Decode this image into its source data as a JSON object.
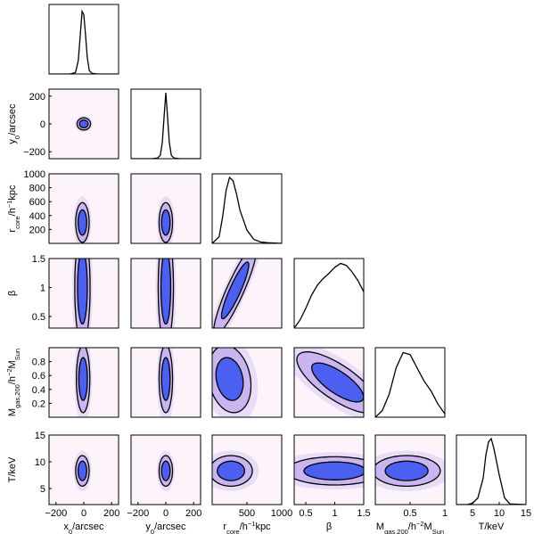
{
  "chart_data": {
    "type": "corner",
    "parameters": [
      {
        "id": "x0",
        "label": "x0/arcsec",
        "range": [
          -250,
          250
        ],
        "ticks": [
          -200,
          0,
          200
        ],
        "peak": -10,
        "sigma": 25
      },
      {
        "id": "y0",
        "label": "y0/arcsec",
        "range": [
          -250,
          250
        ],
        "ticks": [
          -200,
          0,
          200
        ],
        "peak": 0,
        "sigma": 25
      },
      {
        "id": "rcore",
        "label": "rcore/h^-1kpc",
        "range": [
          0,
          1000
        ],
        "ticks": [
          200,
          400,
          600,
          800,
          1000
        ],
        "xticks": [
          500,
          1000
        ],
        "peak": 300,
        "sigma": 130
      },
      {
        "id": "beta",
        "label": "β",
        "range": [
          0.3,
          1.5
        ],
        "ticks": [
          0.5,
          1,
          1.5
        ],
        "peak": 1.05,
        "sigma": 0.35
      },
      {
        "id": "mgas",
        "label": "Mgas,200/h^-2MSun",
        "range": [
          0,
          1
        ],
        "ticks": [
          0.2,
          0.4,
          0.6,
          0.8
        ],
        "xticks": [
          0.5,
          1
        ],
        "peak": 0.45,
        "sigma": 0.22
      },
      {
        "id": "T",
        "label": "T/keV",
        "range": [
          2,
          15
        ],
        "ticks": [
          5,
          10,
          15
        ],
        "peak": 8.3,
        "sigma": 1.3
      }
    ],
    "diagonal": {
      "x0": {
        "x": [
          -250,
          -100,
          -60,
          -40,
          -25,
          -12,
          0,
          12,
          25,
          40,
          60,
          100,
          250
        ],
        "y": [
          0,
          0,
          0.02,
          0.2,
          0.6,
          0.95,
          0.9,
          0.6,
          0.25,
          0.05,
          0.01,
          0,
          0
        ]
      },
      "y0": {
        "x": [
          -250,
          -100,
          -60,
          -40,
          -25,
          -10,
          0,
          10,
          25,
          40,
          60,
          100,
          250
        ],
        "y": [
          0,
          0,
          0.01,
          0.05,
          0.25,
          0.7,
          1.0,
          0.7,
          0.25,
          0.05,
          0.01,
          0,
          0
        ]
      },
      "rcore": {
        "x": [
          0,
          100,
          150,
          200,
          250,
          300,
          350,
          400,
          500,
          600,
          700,
          800,
          1000
        ],
        "y": [
          0,
          0.1,
          0.4,
          0.8,
          1.0,
          0.95,
          0.75,
          0.5,
          0.2,
          0.06,
          0.02,
          0.01,
          0
        ]
      },
      "beta": {
        "x": [
          0.3,
          0.4,
          0.5,
          0.6,
          0.7,
          0.8,
          0.9,
          1.0,
          1.1,
          1.2,
          1.3,
          1.4,
          1.5
        ],
        "y": [
          0,
          0.12,
          0.3,
          0.5,
          0.65,
          0.75,
          0.83,
          0.92,
          0.98,
          0.95,
          0.85,
          0.72,
          0.55
        ]
      },
      "mgas": {
        "x": [
          0,
          0.1,
          0.2,
          0.3,
          0.4,
          0.5,
          0.6,
          0.7,
          0.8,
          0.9,
          1.0
        ],
        "y": [
          0,
          0.1,
          0.35,
          0.75,
          0.98,
          0.95,
          0.75,
          0.55,
          0.4,
          0.2,
          0.05
        ]
      },
      "T": {
        "x": [
          2,
          4,
          5,
          6,
          7,
          7.5,
          8,
          8.5,
          9,
          10,
          11,
          12,
          15
        ],
        "y": [
          0,
          0,
          0.02,
          0.1,
          0.4,
          0.75,
          0.95,
          1.0,
          0.85,
          0.45,
          0.1,
          0.01,
          0
        ]
      }
    },
    "joint": [
      {
        "x": "x0",
        "y": "y0",
        "cx": 0,
        "cy": 0,
        "sx": 22,
        "sy": 20,
        "rho": 0
      },
      {
        "x": "x0",
        "y": "rcore",
        "cx": -10,
        "cy": 300,
        "sx": 22,
        "sy": 130,
        "rho": 0
      },
      {
        "x": "y0",
        "y": "rcore",
        "cx": 0,
        "cy": 300,
        "sx": 22,
        "sy": 130,
        "rho": 0
      },
      {
        "x": "x0",
        "y": "beta",
        "cx": -10,
        "cy": 1.0,
        "sx": 25,
        "sy": 0.45,
        "rho": 0
      },
      {
        "x": "y0",
        "y": "beta",
        "cx": 0,
        "cy": 1.0,
        "sx": 25,
        "sy": 0.45,
        "rho": 0
      },
      {
        "x": "rcore",
        "y": "beta",
        "cx": 330,
        "cy": 0.95,
        "sx": 140,
        "sy": 0.35,
        "rho": 0.9
      },
      {
        "x": "x0",
        "y": "mgas",
        "cx": -5,
        "cy": 0.55,
        "sx": 22,
        "sy": 0.22,
        "rho": 0
      },
      {
        "x": "y0",
        "y": "mgas",
        "cx": 0,
        "cy": 0.55,
        "sx": 22,
        "sy": 0.22,
        "rho": 0
      },
      {
        "x": "rcore",
        "y": "mgas",
        "cx": 250,
        "cy": 0.55,
        "sx": 140,
        "sy": 0.22,
        "rho": -0.2
      },
      {
        "x": "beta",
        "y": "mgas",
        "cx": 1.05,
        "cy": 0.5,
        "sx": 0.32,
        "sy": 0.2,
        "rho": -0.75
      },
      {
        "x": "x0",
        "y": "T",
        "cx": -10,
        "cy": 8.3,
        "sx": 22,
        "sy": 1.3,
        "rho": 0
      },
      {
        "x": "y0",
        "y": "T",
        "cx": 0,
        "cy": 8.3,
        "sx": 22,
        "sy": 1.3,
        "rho": 0
      },
      {
        "x": "rcore",
        "y": "T",
        "cx": 270,
        "cy": 8.3,
        "sx": 140,
        "sy": 1.3,
        "rho": 0
      },
      {
        "x": "beta",
        "y": "T",
        "cx": 1.0,
        "cy": 8.3,
        "sx": 0.38,
        "sy": 1.2,
        "rho": 0
      },
      {
        "x": "mgas",
        "y": "T",
        "cx": 0.45,
        "cy": 8.3,
        "sx": 0.22,
        "sy": 1.3,
        "rho": 0
      }
    ],
    "colors": {
      "background": "#fdf3fb",
      "mid": "#c9b6f0",
      "core": "#4b5ff0",
      "line": "#000000"
    }
  }
}
